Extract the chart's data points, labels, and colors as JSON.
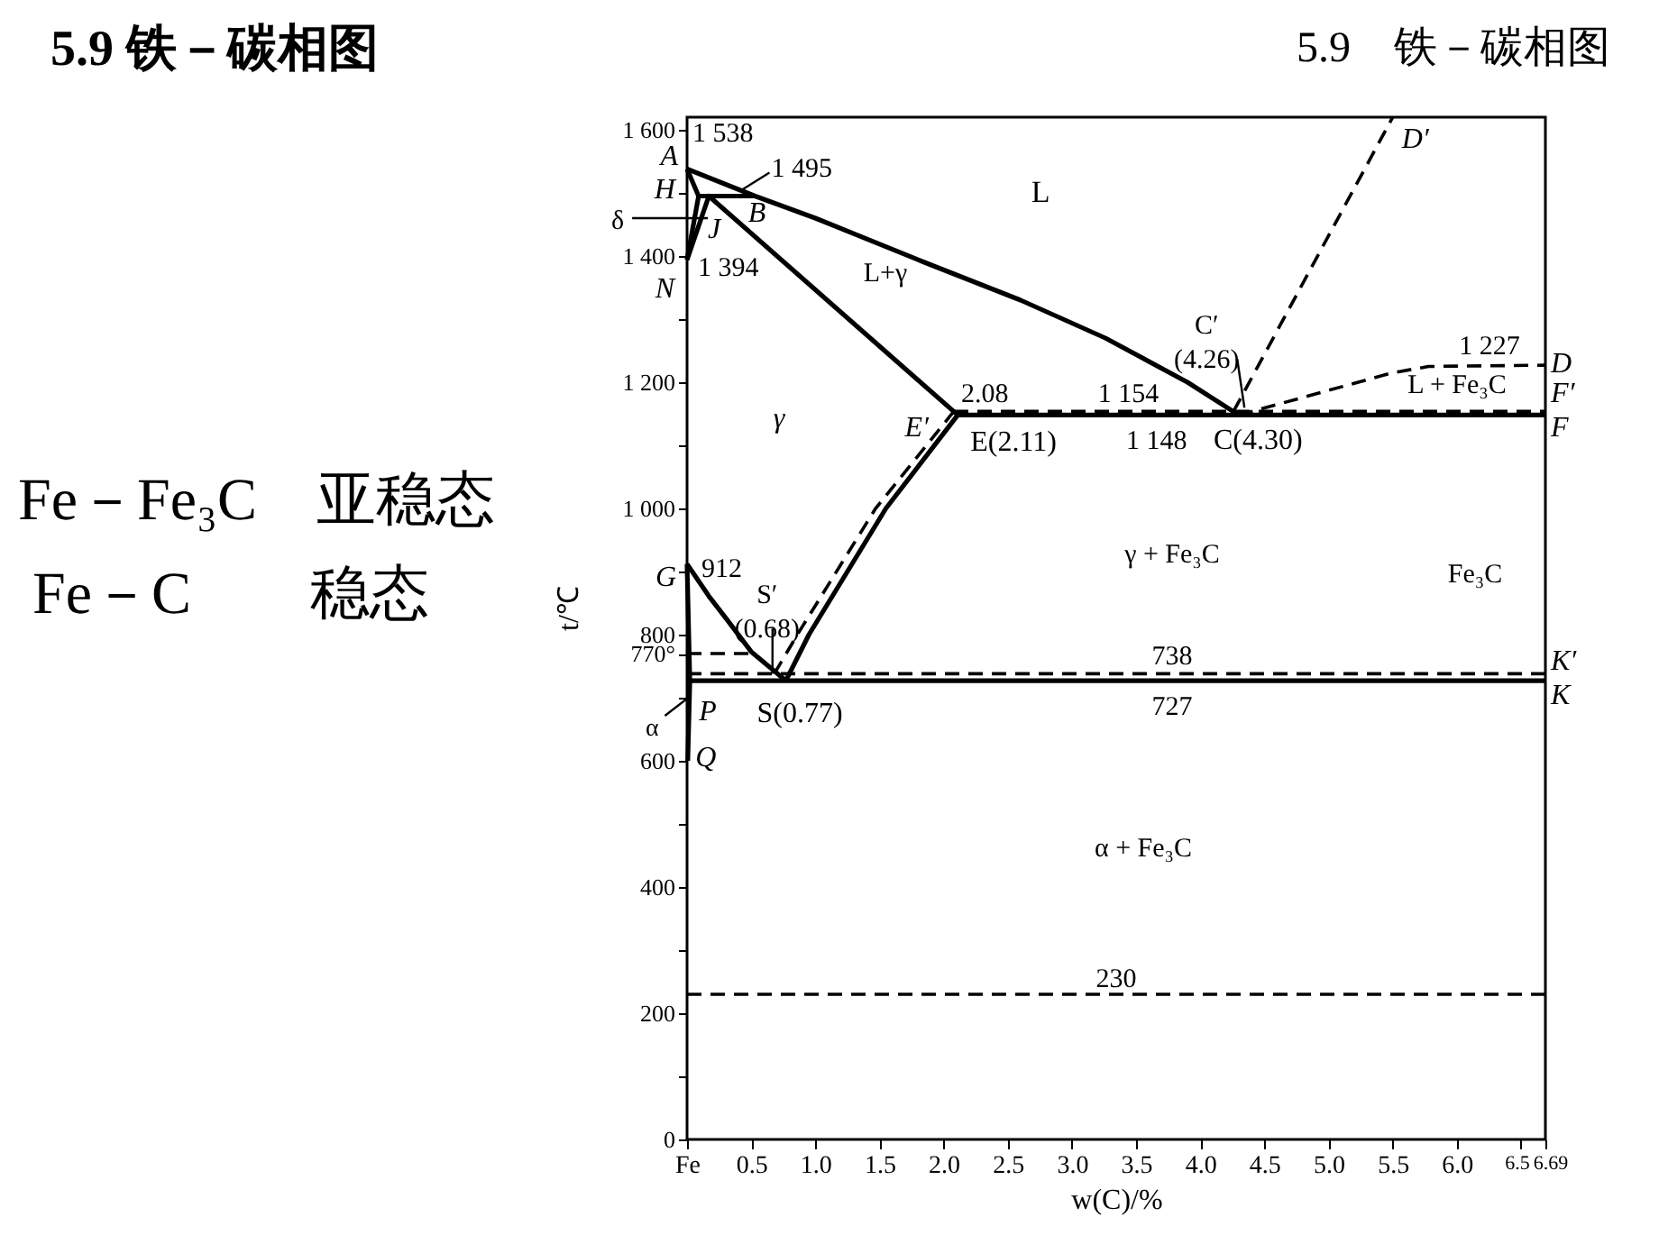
{
  "chart_data": {
    "type": "line",
    "title": "5.9 铁－碳相图",
    "xlabel": "w(C)/%",
    "ylabel": "t/℃",
    "color": "#000000",
    "line_style": "solid",
    "xlim": [
      0,
      6.69
    ],
    "ylim": [
      0,
      1620
    ],
    "xticks": [
      {
        "value": 0,
        "label": "Fe"
      },
      0.5,
      {
        "value": 1,
        "label": "1.0"
      },
      1.5,
      {
        "value": 2,
        "label": "2.0"
      },
      2.5,
      {
        "value": 3,
        "label": "3.0"
      },
      3.5,
      {
        "value": 4,
        "label": "4.0"
      },
      4.5,
      {
        "value": 5,
        "label": "5.0"
      },
      5.5,
      {
        "value": 6,
        "label": "6.0"
      },
      6.5,
      6.69
    ],
    "yticks": [
      0,
      {
        "value": 100,
        "label": null
      },
      200,
      {
        "value": 300,
        "label": null
      },
      400,
      {
        "value": 500,
        "label": null
      },
      600,
      {
        "value": 700,
        "label": null
      },
      {
        "value": 770,
        "label": "770°"
      },
      800,
      {
        "value": 900,
        "label": null
      },
      {
        "value": 1000,
        "label": "1 000"
      },
      {
        "value": 1100,
        "label": null
      },
      {
        "value": 1200,
        "label": "1 200"
      },
      {
        "value": 1300,
        "label": null
      },
      {
        "value": 1400,
        "label": "1 400"
      },
      {
        "value": 1500,
        "label": null
      },
      {
        "value": 1600,
        "label": "1 600"
      }
    ],
    "series": [
      {
        "x": [
          0,
          0.53,
          1.0,
          1.85,
          2.6,
          3.26,
          3.9,
          4.3
        ],
        "values": [
          1538,
          1495,
          1460,
          1390,
          1330,
          1270,
          1200,
          1148
        ]
      },
      {
        "x": [
          0,
          0.09,
          0
        ],
        "values": [
          1538,
          1495,
          1394
        ]
      },
      {
        "x": [
          0.09,
          0.17,
          0.53
        ],
        "values": [
          1495,
          1495,
          1495
        ]
      },
      {
        "x": [
          0,
          0.17,
          2.11
        ],
        "values": [
          1394,
          1495,
          1148
        ]
      },
      {
        "x": [
          2.11,
          6.69
        ],
        "values": [
          1148,
          1148
        ]
      },
      {
        "x": [
          4.3,
          5.5,
          5.78,
          6.69
        ],
        "values": [
          1148,
          1215,
          1225,
          1227
        ],
        "line_style": "dashed"
      },
      {
        "x": [
          0.77,
          0.95,
          1.55,
          2.11
        ],
        "values": [
          727,
          800,
          1000,
          1148
        ]
      },
      {
        "x": [
          0,
          0.17,
          0.31,
          0.5,
          0.77
        ],
        "values": [
          912,
          861,
          824,
          773,
          727
        ]
      },
      {
        "x": [
          0,
          0.0218,
          0.0057
        ],
        "values": [
          912,
          727,
          600
        ]
      },
      {
        "x": [
          0.0218,
          6.69
        ],
        "values": [
          727,
          727
        ]
      },
      {
        "x": [
          0,
          0.5
        ],
        "values": [
          770,
          770
        ],
        "line_style": "dashed"
      },
      {
        "x": [
          4.26,
          5.5
        ],
        "values": [
          1154,
          1620
        ],
        "line_style": "dashed"
      },
      {
        "x": [
          2.08,
          6.69
        ],
        "values": [
          1154,
          1154
        ],
        "line_style": "dashed"
      },
      {
        "x": [
          0.68,
          0.86,
          1.47,
          2.08
        ],
        "values": [
          738,
          800,
          1000,
          1154
        ],
        "line_style": "dashed"
      },
      {
        "x": [
          0,
          6.69
        ],
        "values": [
          738,
          738
        ],
        "line_style": "dashed"
      }
    ],
    "ref_lines": [
      {
        "axis": "y",
        "value": 230,
        "label": "230",
        "line_style": "dashed"
      }
    ],
    "annotations": [
      {
        "text": "A",
        "x": 0,
        "y": 1538
      },
      {
        "text": "1 538",
        "x": 0,
        "y": 1538
      },
      {
        "text": "1 495",
        "x": 0.53,
        "y": 1495
      },
      {
        "text": "H",
        "x": 0.09,
        "y": 1495
      },
      {
        "text": "B",
        "x": 0.53,
        "y": 1495
      },
      {
        "text": "J",
        "x": 0.17,
        "y": 1495
      },
      {
        "text": "δ",
        "x": 0.05,
        "y": 1460
      },
      {
        "text": "N",
        "x": 0,
        "y": 1394
      },
      {
        "text": "1 394",
        "x": 0,
        "y": 1394
      },
      {
        "text": "E′",
        "x": 2.08,
        "y": 1154
      },
      {
        "text": "2.08",
        "x": 2.08,
        "y": 1154
      },
      {
        "text": "E(2.11)",
        "x": 2.11,
        "y": 1148
      },
      {
        "text": "1 154",
        "x": 3.44,
        "y": 1154
      },
      {
        "text": "1 148",
        "x": 3.66,
        "y": 1148
      },
      {
        "text": "C(4.30)",
        "x": 4.3,
        "y": 1148
      },
      {
        "text": "C′ (4.26)",
        "x": 4.26,
        "y": 1154
      },
      {
        "text": "D′",
        "x": 5.5,
        "y": 1620
      },
      {
        "text": "1 227",
        "x": 6.69,
        "y": 1227
      },
      {
        "text": "D",
        "x": 6.69,
        "y": 1227
      },
      {
        "text": "F′",
        "x": 6.69,
        "y": 1154
      },
      {
        "text": "F",
        "x": 6.69,
        "y": 1148
      },
      {
        "text": "G",
        "x": 0,
        "y": 912
      },
      {
        "text": "912",
        "x": 0,
        "y": 912
      },
      {
        "text": "S′ (0.68)",
        "x": 0.68,
        "y": 738
      },
      {
        "text": "P",
        "x": 0.0218,
        "y": 727
      },
      {
        "text": "α",
        "x": 0.01,
        "y": 700
      },
      {
        "text": "S(0.77)",
        "x": 0.77,
        "y": 727
      },
      {
        "text": "Q",
        "x": 0.0057,
        "y": 600
      },
      {
        "text": "738",
        "x": 3.78,
        "y": 738
      },
      {
        "text": "727",
        "x": 3.78,
        "y": 727
      },
      {
        "text": "K′",
        "x": 6.69,
        "y": 738
      },
      {
        "text": "K",
        "x": 6.69,
        "y": 727
      },
      "L",
      "L+γ",
      "γ",
      "L + Fe₃C",
      "γ + Fe₃C",
      "Fe₃C",
      "α + Fe₃C",
      "5.9　铁－碳相图",
      "Fe－Fe₃C　亚稳态",
      "Fe－C　　稳态"
    ]
  }
}
